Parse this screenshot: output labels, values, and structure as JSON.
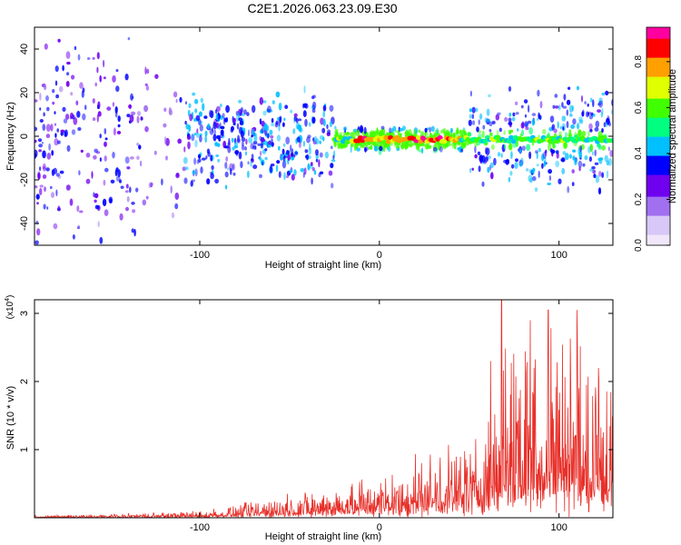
{
  "title": "C2E1.2026.063.23.09.E30",
  "chart_data": [
    {
      "type": "heatmap",
      "name": "spectrogram",
      "xlabel": "Height of straight line (km)",
      "ylabel": "Frequency (Hz)",
      "xlim": [
        -192,
        130
      ],
      "ylim": [
        -50,
        50
      ],
      "xticks": [
        -100,
        0,
        100
      ],
      "yticks": [
        -40,
        -20,
        0,
        20,
        40
      ],
      "colorbar": {
        "label": "Normalized spectral amplitude",
        "range": [
          0.0,
          0.95
        ],
        "ticks": [
          0.0,
          0.2,
          0.4,
          0.6,
          0.8
        ],
        "tick_labels": [
          "0.0",
          "0.2",
          "0.4",
          "0.6",
          "0.8"
        ],
        "colormap": [
          "#f0e8fa",
          "#d8c8f8",
          "#a070f0",
          "#7000f0",
          "#0000ff",
          "#00c0ff",
          "#00ff80",
          "#40ff00",
          "#e0ff00",
          "#ffa000",
          "#ff0000",
          "#ff00a0"
        ]
      },
      "ridge": {
        "description": "strong narrow band near 0 Hz",
        "x_range": [
          -25,
          130
        ],
        "peak_x_range": [
          -15,
          45
        ],
        "center_freq_hz": -1.5
      }
    },
    {
      "type": "line",
      "name": "snr",
      "xlabel": "Height of straight line (km)",
      "ylabel": "SNR (10 * v/v)",
      "y_scale_label": "(x10",
      "y_scale_exp": "4",
      "xlim": [
        -192,
        130
      ],
      "ylim": [
        0,
        3.2
      ],
      "xticks": [
        -100,
        0,
        100
      ],
      "yticks": [
        1,
        2,
        3
      ],
      "color": "#e8302a",
      "envelope_km": [
        -192,
        -150,
        -100,
        -80,
        -60,
        -40,
        -20,
        0,
        20,
        40,
        60,
        70,
        80,
        100,
        130
      ],
      "envelope_snr_x1e4": [
        0.03,
        0.05,
        0.1,
        0.18,
        0.28,
        0.38,
        0.5,
        0.62,
        0.8,
        1.0,
        1.4,
        2.6,
        2.8,
        2.8,
        1.8
      ],
      "peaks": [
        {
          "x": 68,
          "y": 3.25
        },
        {
          "x": 62,
          "y": 2.3
        },
        {
          "x": 84,
          "y": 2.9
        },
        {
          "x": 94,
          "y": 3.05
        },
        {
          "x": 110,
          "y": 3.05
        },
        {
          "x": 122,
          "y": 2.2
        }
      ]
    }
  ]
}
